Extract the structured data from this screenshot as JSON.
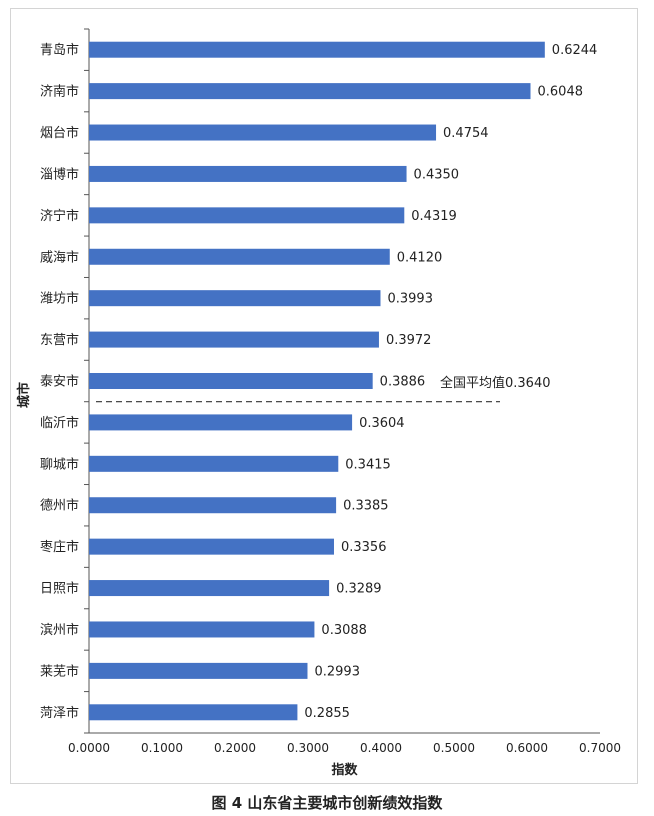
{
  "chart_data": {
    "type": "bar",
    "orientation": "horizontal",
    "categories": [
      "青岛市",
      "济南市",
      "烟台市",
      "淄博市",
      "济宁市",
      "威海市",
      "潍坊市",
      "东营市",
      "泰安市",
      "临沂市",
      "聊城市",
      "德州市",
      "枣庄市",
      "日照市",
      "滨州市",
      "莱芜市",
      "菏泽市"
    ],
    "values": [
      0.6244,
      0.6048,
      0.4754,
      0.435,
      0.4319,
      0.412,
      0.3993,
      0.3972,
      0.3886,
      0.3604,
      0.3415,
      0.3385,
      0.3356,
      0.3289,
      0.3088,
      0.2993,
      0.2855
    ],
    "value_labels": [
      "0.6244",
      "0.6048",
      "0.4754",
      "0.4350",
      "0.4319",
      "0.4120",
      "0.3993",
      "0.3972",
      "0.3886",
      "0.3604",
      "0.3415",
      "0.3385",
      "0.3356",
      "0.3289",
      "0.3088",
      "0.2993",
      "0.2855"
    ],
    "xlabel": "指数",
    "ylabel": "城市",
    "xlim": [
      0,
      0.7
    ],
    "x_ticks": [
      "0.0000",
      "0.1000",
      "0.2000",
      "0.3000",
      "0.4000",
      "0.5000",
      "0.6000",
      "0.7000"
    ],
    "grid": false,
    "bar_color": "#4472c4",
    "reference_line": {
      "label": "全国平均值0.3640",
      "value": 0.364,
      "style": "dashed"
    }
  },
  "caption": "图 4  山东省主要城市创新绩效指数"
}
